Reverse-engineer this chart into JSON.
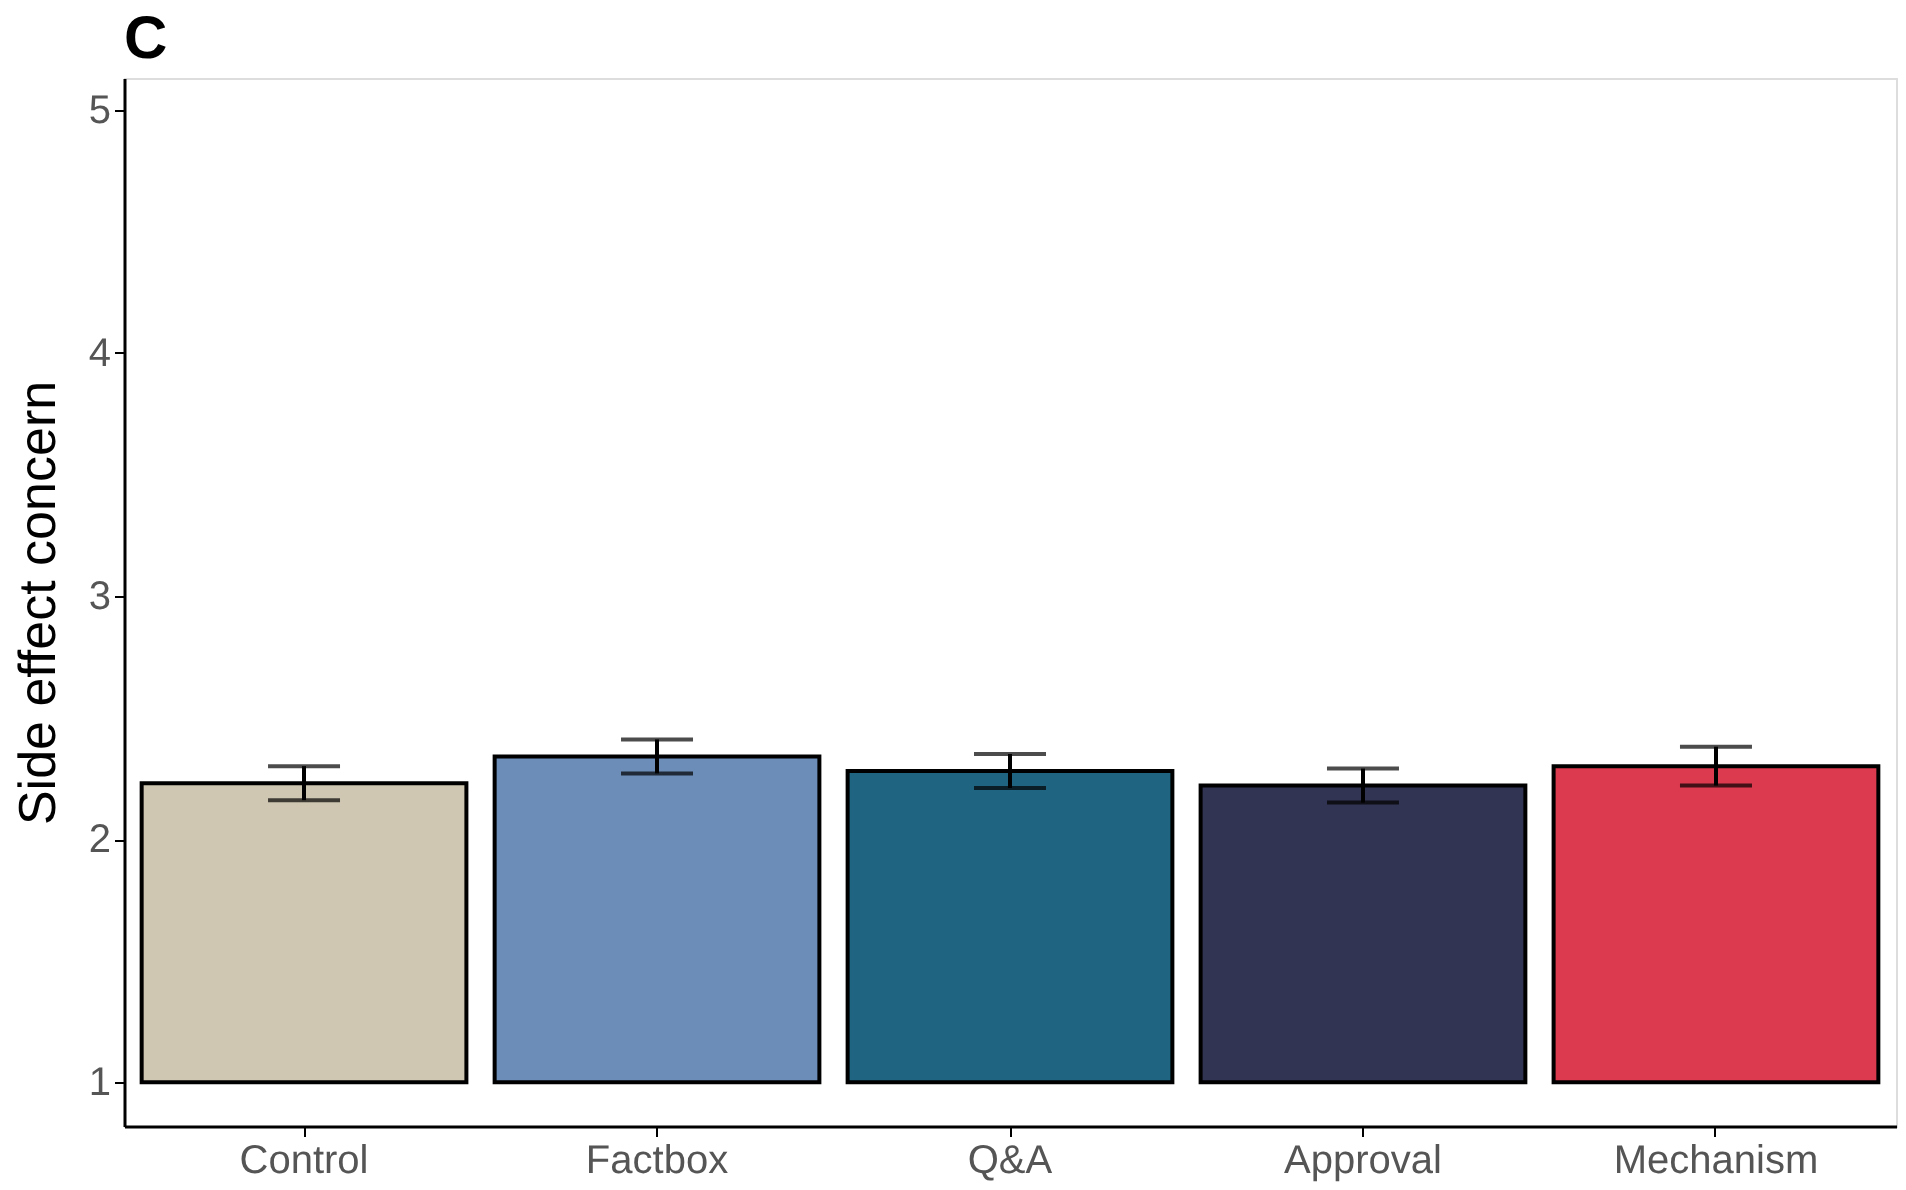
{
  "chart_data": {
    "type": "bar",
    "title": "C",
    "ylabel": "Side effect concern",
    "categories": [
      "Control",
      "Factbox",
      "Q&A",
      "Approval",
      "Mechanism"
    ],
    "base": [
      1,
      1,
      1,
      1,
      1
    ],
    "values": [
      1.23,
      1.34,
      1.28,
      1.22,
      1.3
    ],
    "errors": [
      0.07,
      0.07,
      0.07,
      0.07,
      0.08
    ],
    "colors": [
      "#d0c7b3",
      "#6b8db8",
      "#1f6480",
      "#323453",
      "#dc3a4e"
    ],
    "ylim": [
      0.82,
      5.13
    ],
    "yticks": [
      1,
      2,
      3,
      4,
      5
    ],
    "grid": false
  }
}
